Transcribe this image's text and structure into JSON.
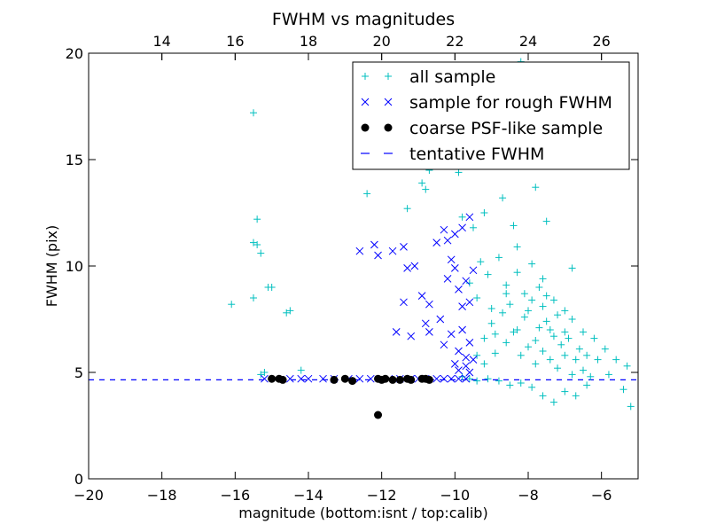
{
  "chart_data": {
    "type": "scatter",
    "title": "FWHM vs magnitudes",
    "xlabel": "magnitude (bottom:isnt / top:calib)",
    "ylabel": "FWHM (pix)",
    "xlim": [
      -20,
      -5
    ],
    "ylim": [
      0,
      20
    ],
    "x_ticks": [
      -20,
      -18,
      -16,
      -14,
      -12,
      -10,
      -8,
      -6
    ],
    "x_tick_labels": [
      "−20",
      "−18",
      "−16",
      "−14",
      "−12",
      "−10",
      "−8",
      "−6"
    ],
    "y_ticks": [
      0,
      5,
      10,
      15,
      20
    ],
    "y_tick_labels": [
      "0",
      "5",
      "10",
      "15",
      "20"
    ],
    "top_axis": {
      "ticks": [
        14,
        16,
        18,
        20,
        22,
        24,
        26
      ],
      "tick_labels": [
        "14",
        "16",
        "18",
        "20",
        "22",
        "24",
        "26"
      ],
      "offset": 32.0
    },
    "grid": false,
    "legend_position": "top-right",
    "colors": {
      "all_sample": "#00bfbf",
      "rough_sample": "#0000ff",
      "psf_sample": "#000000",
      "tentative_fwhm": "#0000ff"
    },
    "series": [
      {
        "name": "all sample",
        "marker": "+",
        "points": [
          [
            -15.5,
            17.2
          ],
          [
            -15.4,
            12.2
          ],
          [
            -15.5,
            11.1
          ],
          [
            -15.4,
            11.0
          ],
          [
            -15.3,
            10.6
          ],
          [
            -15.5,
            8.5
          ],
          [
            -16.1,
            8.2
          ],
          [
            -15.1,
            9.0
          ],
          [
            -15.0,
            9.0
          ],
          [
            -14.6,
            7.8
          ],
          [
            -14.5,
            7.9
          ],
          [
            -14.2,
            5.1
          ],
          [
            -15.3,
            4.9
          ],
          [
            -15.2,
            5.0
          ],
          [
            -12.4,
            13.4
          ],
          [
            -11.3,
            12.7
          ],
          [
            -10.8,
            13.6
          ],
          [
            -10.4,
            16.2
          ],
          [
            -10.7,
            14.5
          ],
          [
            -10.9,
            13.9
          ],
          [
            -9.9,
            14.4
          ],
          [
            -9.8,
            12.3
          ],
          [
            -9.5,
            11.8
          ],
          [
            -9.2,
            12.5
          ],
          [
            -9.0,
            15.1
          ],
          [
            -8.7,
            13.2
          ],
          [
            -8.4,
            11.9
          ],
          [
            -7.8,
            13.7
          ],
          [
            -7.5,
            12.1
          ],
          [
            -7.7,
            15.9
          ],
          [
            -8.9,
            18.9
          ],
          [
            -8.2,
            19.6
          ],
          [
            -6.8,
            9.9
          ],
          [
            -9.3,
            10.2
          ],
          [
            -9.6,
            9.2
          ],
          [
            -9.4,
            8.5
          ],
          [
            -9.1,
            9.6
          ],
          [
            -8.8,
            10.4
          ],
          [
            -8.6,
            9.1
          ],
          [
            -8.3,
            10.9
          ],
          [
            -8.1,
            8.7
          ],
          [
            -7.9,
            10.1
          ],
          [
            -7.6,
            9.4
          ],
          [
            -7.3,
            8.4
          ],
          [
            -7.0,
            7.9
          ],
          [
            -6.8,
            7.5
          ],
          [
            -6.5,
            6.9
          ],
          [
            -6.2,
            6.6
          ],
          [
            -5.9,
            6.1
          ],
          [
            -5.6,
            5.6
          ],
          [
            -5.3,
            5.3
          ],
          [
            -5.2,
            3.4
          ],
          [
            -5.4,
            4.2
          ],
          [
            -5.8,
            4.9
          ],
          [
            -6.1,
            5.6
          ],
          [
            -6.4,
            4.4
          ],
          [
            -6.7,
            3.9
          ],
          [
            -7.0,
            4.1
          ],
          [
            -7.3,
            3.6
          ],
          [
            -7.6,
            3.9
          ],
          [
            -7.9,
            4.3
          ],
          [
            -8.2,
            4.5
          ],
          [
            -8.5,
            4.4
          ],
          [
            -8.8,
            4.6
          ],
          [
            -9.1,
            4.7
          ],
          [
            -9.4,
            4.6
          ],
          [
            -9.6,
            4.7
          ],
          [
            -9.8,
            4.8
          ],
          [
            -9.4,
            5.8
          ],
          [
            -9.2,
            6.6
          ],
          [
            -9.0,
            7.3
          ],
          [
            -8.9,
            5.9
          ],
          [
            -8.7,
            7.8
          ],
          [
            -8.6,
            6.4
          ],
          [
            -8.5,
            8.2
          ],
          [
            -8.3,
            7.0
          ],
          [
            -8.2,
            5.8
          ],
          [
            -8.1,
            7.6
          ],
          [
            -8.0,
            6.2
          ],
          [
            -7.9,
            8.4
          ],
          [
            -7.8,
            5.4
          ],
          [
            -7.7,
            7.1
          ],
          [
            -7.6,
            6.0
          ],
          [
            -7.5,
            7.4
          ],
          [
            -7.4,
            5.6
          ],
          [
            -7.3,
            6.7
          ],
          [
            -7.2,
            5.2
          ],
          [
            -7.1,
            6.3
          ],
          [
            -7.0,
            5.8
          ],
          [
            -6.9,
            6.6
          ],
          [
            -6.8,
            4.9
          ],
          [
            -6.7,
            5.6
          ],
          [
            -6.6,
            6.1
          ],
          [
            -6.5,
            5.1
          ],
          [
            -6.4,
            5.8
          ],
          [
            -6.3,
            4.8
          ],
          [
            -8.4,
            6.9
          ],
          [
            -8.0,
            7.9
          ],
          [
            -7.8,
            6.5
          ],
          [
            -7.6,
            8.1
          ],
          [
            -7.4,
            7.0
          ],
          [
            -7.2,
            7.7
          ],
          [
            -7.0,
            6.9
          ],
          [
            -7.7,
            9.0
          ],
          [
            -7.5,
            8.6
          ],
          [
            -8.3,
            9.7
          ],
          [
            -8.6,
            8.7
          ],
          [
            -9.0,
            8.0
          ],
          [
            -8.9,
            6.8
          ],
          [
            -9.2,
            5.4
          ]
        ]
      },
      {
        "name": "sample for rough FWHM",
        "marker": "x",
        "points": [
          [
            -15.2,
            4.7
          ],
          [
            -14.9,
            4.7
          ],
          [
            -14.5,
            4.7
          ],
          [
            -14.2,
            4.7
          ],
          [
            -14.0,
            4.7
          ],
          [
            -13.6,
            4.7
          ],
          [
            -13.3,
            4.7
          ],
          [
            -12.9,
            4.7
          ],
          [
            -12.6,
            4.7
          ],
          [
            -12.3,
            4.7
          ],
          [
            -12.0,
            4.7
          ],
          [
            -11.8,
            4.7
          ],
          [
            -11.5,
            4.7
          ],
          [
            -11.2,
            4.7
          ],
          [
            -11.0,
            4.7
          ],
          [
            -10.8,
            4.7
          ],
          [
            -10.5,
            4.7
          ],
          [
            -10.3,
            4.7
          ],
          [
            -10.1,
            4.7
          ],
          [
            -9.9,
            4.7
          ],
          [
            -9.7,
            4.7
          ],
          [
            -12.6,
            10.7
          ],
          [
            -12.2,
            11.0
          ],
          [
            -12.1,
            10.5
          ],
          [
            -11.7,
            10.7
          ],
          [
            -11.4,
            10.9
          ],
          [
            -11.3,
            9.9
          ],
          [
            -11.1,
            10.0
          ],
          [
            -11.4,
            8.3
          ],
          [
            -11.6,
            6.9
          ],
          [
            -11.2,
            6.7
          ],
          [
            -10.9,
            8.6
          ],
          [
            -10.7,
            8.2
          ],
          [
            -10.8,
            7.3
          ],
          [
            -10.7,
            6.9
          ],
          [
            -10.5,
            11.1
          ],
          [
            -10.3,
            11.7
          ],
          [
            -10.2,
            11.2
          ],
          [
            -10.1,
            10.3
          ],
          [
            -10.0,
            11.5
          ],
          [
            -9.8,
            11.8
          ],
          [
            -9.6,
            12.3
          ],
          [
            -10.2,
            9.4
          ],
          [
            -10.0,
            9.9
          ],
          [
            -9.9,
            8.9
          ],
          [
            -9.8,
            8.1
          ],
          [
            -9.7,
            9.3
          ],
          [
            -9.6,
            8.3
          ],
          [
            -9.5,
            9.8
          ],
          [
            -10.4,
            7.5
          ],
          [
            -10.3,
            6.3
          ],
          [
            -10.1,
            6.8
          ],
          [
            -9.9,
            6.0
          ],
          [
            -9.8,
            7.0
          ],
          [
            -9.7,
            5.7
          ],
          [
            -9.6,
            6.4
          ],
          [
            -10.0,
            5.4
          ],
          [
            -9.9,
            5.1
          ],
          [
            -9.7,
            5.3
          ],
          [
            -9.6,
            5.0
          ],
          [
            -9.5,
            5.6
          ]
        ]
      },
      {
        "name": "coarse PSF-like sample",
        "marker": "o",
        "points": [
          [
            -15.0,
            4.7
          ],
          [
            -14.8,
            4.7
          ],
          [
            -14.7,
            4.65
          ],
          [
            -13.3,
            4.65
          ],
          [
            -13.0,
            4.7
          ],
          [
            -12.8,
            4.6
          ],
          [
            -12.1,
            4.7
          ],
          [
            -12.0,
            4.65
          ],
          [
            -11.9,
            4.7
          ],
          [
            -11.7,
            4.65
          ],
          [
            -11.5,
            4.65
          ],
          [
            -11.3,
            4.7
          ],
          [
            -11.2,
            4.65
          ],
          [
            -10.9,
            4.7
          ],
          [
            -10.8,
            4.7
          ],
          [
            -10.7,
            4.65
          ],
          [
            -12.1,
            3.0
          ]
        ]
      },
      {
        "name": "tentative FWHM",
        "marker": "dashed-line",
        "y": 4.65
      }
    ]
  }
}
